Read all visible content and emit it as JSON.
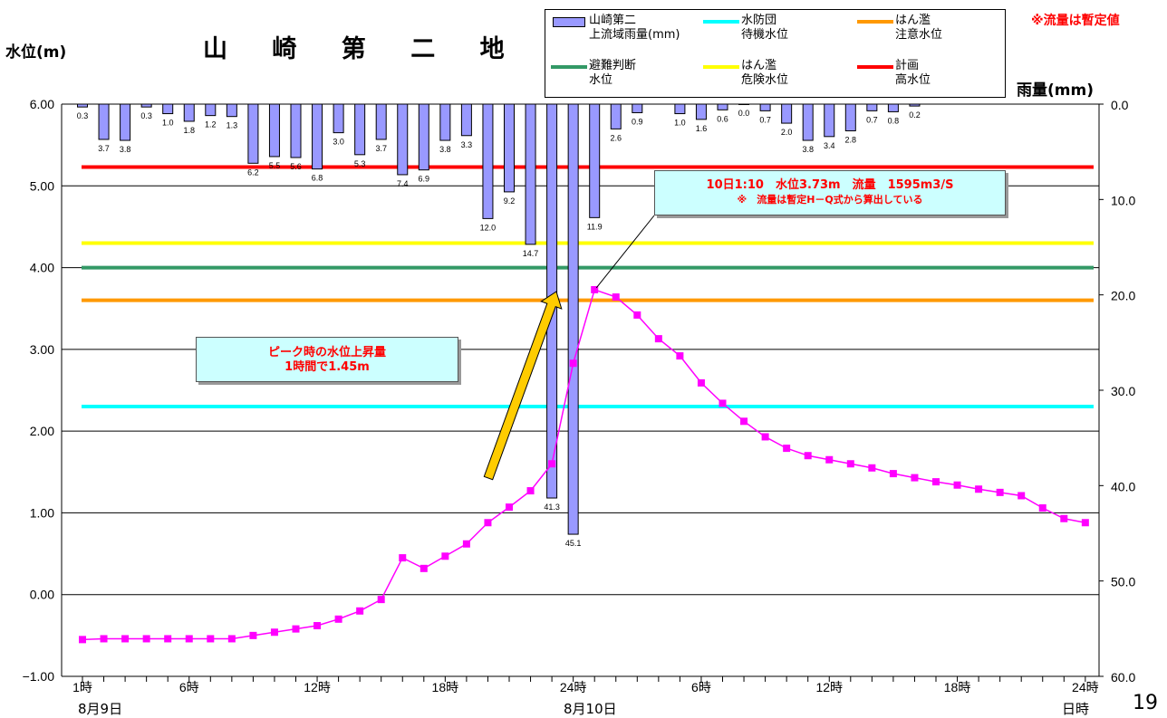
{
  "title": "山 崎 第 二 地 点",
  "left_axis_label": "水位(m)",
  "right_axis_label": "雨量(mm)",
  "note": "※流量は暫定値",
  "page_number": "19",
  "legend": [
    {
      "line1": "山崎第二",
      "line2": "上流域雨量(mm)",
      "color": "#9999ff",
      "kind": "bar"
    },
    {
      "line1": "水防団",
      "line2": "待機水位",
      "color": "#00ffff",
      "kind": "line"
    },
    {
      "line1": "はん濫",
      "line2": "注意水位",
      "color": "#ff9900",
      "kind": "line"
    },
    {
      "line1": "避難判断",
      "line2": "水位",
      "color": "#339966",
      "kind": "line"
    },
    {
      "line1": "はん濫",
      "line2": "危険水位",
      "color": "#ffff00",
      "kind": "line"
    },
    {
      "line1": "計画",
      "line2": "高水位",
      "color": "#ff0000",
      "kind": "line"
    }
  ],
  "callout_peak": {
    "line1": "10日1:10　水位3.73m　流量　1595m3/S",
    "line2": "※　流量は暫定H－Q式から算出している"
  },
  "callout_rise": {
    "line1": "ピーク時の水位上昇量",
    "line2": "1時間で1.45m"
  },
  "dates": {
    "day1": "8月9日",
    "day2": "8月10日",
    "end": "日時"
  },
  "chart_data": {
    "type": "bar+line",
    "x_tick_labels": [
      "1時",
      "6時",
      "12時",
      "18時",
      "24時",
      "6時",
      "12時",
      "18時",
      "24時"
    ],
    "x_tick_hours": [
      1,
      6,
      12,
      18,
      24,
      30,
      36,
      42,
      48
    ],
    "y_left": {
      "min": -1.0,
      "max": 6.0,
      "ticks": [
        "6.00",
        "5.00",
        "4.00",
        "3.00",
        "2.00",
        "1.00",
        "0.00",
        "−1.00"
      ]
    },
    "y_right": {
      "min": 0.0,
      "max": 60.0,
      "reversed": true,
      "ticks": [
        "0.0",
        "10.0",
        "20.0",
        "30.0",
        "40.0",
        "50.0",
        "60.0"
      ]
    },
    "thresholds": [
      {
        "name": "計画高水位",
        "value": 5.23,
        "color": "#ff0000"
      },
      {
        "name": "はん濫危険水位",
        "value": 4.3,
        "color": "#ffff00"
      },
      {
        "name": "避難判断水位",
        "value": 4.0,
        "color": "#339966"
      },
      {
        "name": "はん濫注意水位",
        "value": 3.6,
        "color": "#ff9900"
      },
      {
        "name": "水防団待機水位",
        "value": 2.3,
        "color": "#00ffff"
      }
    ],
    "rainfall": {
      "name": "山崎第二上流域雨量(mm)",
      "color": "#9999ff",
      "hours": [
        1,
        2,
        3,
        4,
        5,
        6,
        7,
        8,
        9,
        10,
        11,
        12,
        13,
        14,
        15,
        16,
        17,
        18,
        19,
        20,
        21,
        22,
        23,
        24,
        25,
        26,
        27,
        28,
        29,
        30,
        31,
        32,
        33,
        34,
        35,
        36,
        37,
        38,
        39,
        40,
        41,
        42
      ],
      "values": [
        0.3,
        3.7,
        3.8,
        0.3,
        1.0,
        1.8,
        1.2,
        1.3,
        6.2,
        5.5,
        5.6,
        6.8,
        3.0,
        5.3,
        3.7,
        7.4,
        6.9,
        3.8,
        3.3,
        12.0,
        9.2,
        14.7,
        41.3,
        45.1,
        11.9,
        2.6,
        0.9,
        null,
        1.0,
        1.6,
        0.6,
        0.0,
        0.7,
        2.0,
        3.8,
        3.4,
        2.8,
        0.7,
        0.8,
        0.2,
        null,
        null
      ],
      "labels": [
        "0.3",
        "3.7",
        "3.8",
        "0.3",
        "1.0",
        "1.8",
        "1.2",
        "1.3",
        "6.2",
        "5.5",
        "5.6",
        "6.8",
        "3.0",
        "5.3",
        "3.7",
        "7.4",
        "6.9",
        "3.8",
        "3.3",
        "12.0",
        "9.2",
        "14.7",
        "41.3",
        "45.1",
        "11.9",
        "2.6",
        "0.9",
        "",
        "1.0",
        "1.6",
        "0.6",
        "0.0",
        "0.7",
        "2.0",
        "3.8",
        "3.4",
        "2.8",
        "0.7",
        "0.8",
        "0.2",
        "",
        ""
      ]
    },
    "water_level": {
      "color": "#ff00ff",
      "hours": [
        1,
        2,
        3,
        4,
        5,
        6,
        7,
        8,
        9,
        10,
        11,
        12,
        13,
        14,
        15,
        16,
        17,
        18,
        19,
        20,
        21,
        22,
        23,
        24,
        25,
        26,
        27,
        28,
        29,
        30,
        31,
        32,
        33,
        34,
        35,
        36,
        37,
        38,
        39,
        40,
        41,
        42,
        43,
        44,
        45,
        46,
        47,
        48
      ],
      "values": [
        -0.55,
        -0.54,
        -0.54,
        -0.54,
        -0.54,
        -0.54,
        -0.54,
        -0.54,
        -0.5,
        -0.46,
        -0.42,
        -0.38,
        -0.3,
        -0.2,
        -0.06,
        0.45,
        0.32,
        0.47,
        0.62,
        0.88,
        1.07,
        1.27,
        1.6,
        2.83,
        3.73,
        3.64,
        3.42,
        3.13,
        2.92,
        2.59,
        2.34,
        2.12,
        1.93,
        1.79,
        1.7,
        1.65,
        1.6,
        1.55,
        1.48,
        1.43,
        1.38,
        1.34,
        1.29,
        1.25,
        1.21,
        1.06,
        0.93,
        0.88
      ]
    },
    "grid": true
  }
}
